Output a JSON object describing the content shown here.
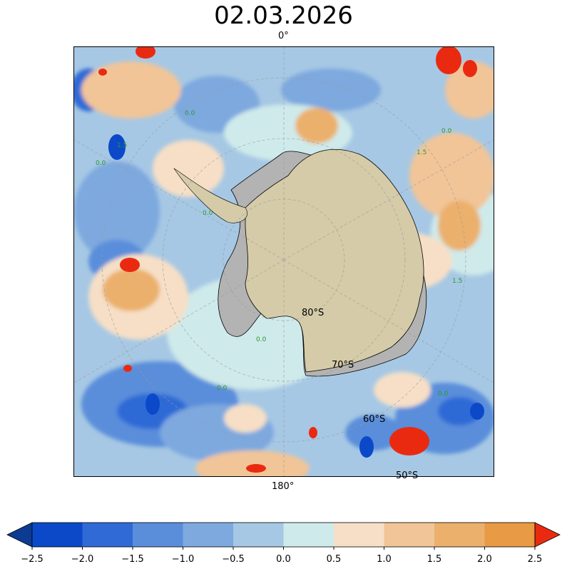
{
  "title": "02.03.2026",
  "map_labels": {
    "lon_top": "0°",
    "lon_bottom": "180°",
    "lat_80": "80°S",
    "lat_70": "70°S",
    "lat_60": "60°S",
    "lat_50": "50°S"
  },
  "contour_labels": [
    "0.0",
    "0.0",
    "0.0",
    "0.0",
    "0.0",
    "1.5",
    "1.5",
    "1.5",
    "0.0",
    "0.0"
  ],
  "colorbar": {
    "ticks": [
      "−2.5",
      "−2.0",
      "−1.5",
      "−1.0",
      "−0.5",
      "0.0",
      "0.5",
      "1.0",
      "1.5",
      "2.0",
      "2.5"
    ],
    "colors": [
      "#0d3b94",
      "#0b49c9",
      "#2f6ad6",
      "#5a8edb",
      "#7ea9df",
      "#a6c8e4",
      "#cfeaea",
      "#f6dfc6",
      "#f1c598",
      "#ebb06c",
      "#e89a45",
      "#ea2a10"
    ]
  },
  "colors": {
    "land": "#d5cba8",
    "ice_shelf": "#b3b3b3",
    "ocean_base": "#a6c8e4",
    "extreme_warm": "#ea2a10",
    "extreme_cold": "#0b49c9"
  }
}
